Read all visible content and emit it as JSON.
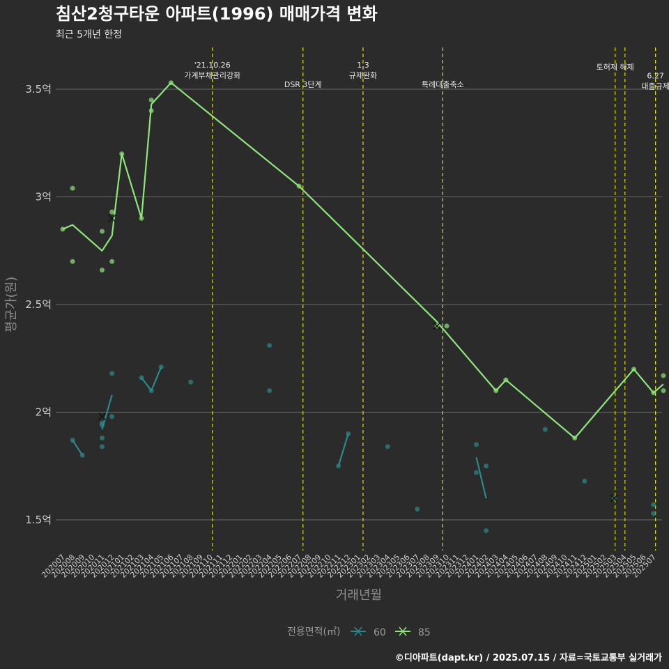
{
  "chart_data": {
    "type": "line",
    "title": "침산2청구타운 아파트(1996) 매매가격 변화",
    "subtitle": "최근 5개년 한정",
    "xlabel": "거래년월",
    "ylabel": "평균가(원)",
    "caption": "©디아파트(dapt.kr) / 2025.07.15 / 자료=국토교통부 실거래가",
    "legend": {
      "title": "전용면적(㎡)",
      "position": "bottom"
    },
    "ylim": [
      1.35,
      3.7
    ],
    "y_ticks": [
      1.5,
      2,
      2.5,
      3,
      3.5
    ],
    "y_tick_labels": [
      "1.5억",
      "2억",
      "2.5억",
      "3억",
      "3.5억"
    ],
    "grid": true,
    "x_categories": [
      "202007",
      "202008",
      "202009",
      "202010",
      "202011",
      "202012",
      "202101",
      "202102",
      "202103",
      "202104",
      "202105",
      "202106",
      "202107",
      "202108",
      "202109",
      "202110",
      "202111",
      "202112",
      "202201",
      "202202",
      "202203",
      "202204",
      "202205",
      "202206",
      "202207",
      "202208",
      "202209",
      "202210",
      "202211",
      "202212",
      "202301",
      "202302",
      "202303",
      "202304",
      "202305",
      "202306",
      "202307",
      "202308",
      "202309",
      "202310",
      "202311",
      "202312",
      "202401",
      "202402",
      "202403",
      "202404",
      "202405",
      "202406",
      "202407",
      "202408",
      "202409",
      "202410",
      "202411",
      "202412",
      "202501",
      "202502",
      "202503",
      "202504",
      "202505",
      "202506",
      "202507"
    ],
    "events": [
      {
        "x": 15.2,
        "lines": [
          "'21.10.26",
          "가계부채관리강화"
        ],
        "label_y": 3.6
      },
      {
        "x": 24.4,
        "lines": [
          "DSR 3단계"
        ],
        "label_y": 3.51
      },
      {
        "x": 30.5,
        "lines": [
          "1.3",
          "규제완화"
        ],
        "label_y": 3.6
      },
      {
        "x": 38.6,
        "lines": [
          "특례대출축소"
        ],
        "label_y": 3.51
      },
      {
        "x": 56.1,
        "lines": [
          "토허제 해제"
        ],
        "label_y": 3.59
      },
      {
        "x": 57.1,
        "lines": [],
        "label_y": 3.59
      },
      {
        "x": 60.2,
        "lines": [
          "6.27",
          "대출규제"
        ],
        "label_y": 3.55
      }
    ],
    "series": [
      {
        "name": "60",
        "color": "#2a8a8a",
        "line": [
          [
            1,
            1.87
          ],
          [
            2,
            1.8
          ],
          [
            null,
            null
          ],
          [
            4,
            1.92
          ],
          [
            5,
            2.08
          ],
          [
            null,
            null
          ],
          [
            8,
            2.16
          ],
          [
            9,
            2.1
          ],
          [
            10,
            2.21
          ],
          [
            null,
            null
          ],
          [
            28,
            1.75
          ],
          [
            29,
            1.9
          ],
          [
            null,
            null
          ],
          [
            42,
            1.79
          ],
          [
            43,
            1.6
          ]
        ],
        "points": [
          [
            1,
            1.87
          ],
          [
            2,
            1.8
          ],
          [
            4,
            1.95
          ],
          [
            4,
            1.94
          ],
          [
            4,
            1.88
          ],
          [
            4,
            1.84
          ],
          [
            5,
            2.18
          ],
          [
            5,
            1.98
          ],
          [
            8,
            2.16
          ],
          [
            9,
            2.1
          ],
          [
            10,
            2.21
          ],
          [
            13,
            2.14
          ],
          [
            21,
            2.31
          ],
          [
            21,
            2.1
          ],
          [
            28,
            1.75
          ],
          [
            29,
            1.9
          ],
          [
            33,
            1.84
          ],
          [
            36,
            1.55
          ],
          [
            42,
            1.85
          ],
          [
            42,
            1.72
          ],
          [
            43,
            1.75
          ],
          [
            43,
            1.45
          ],
          [
            49,
            1.92
          ],
          [
            53,
            1.68
          ],
          [
            56,
            1.6
          ],
          [
            60,
            1.57
          ],
          [
            60,
            1.53
          ]
        ],
        "markers_x": [
          [
            4,
            1.98
          ],
          [
            56,
            1.6
          ]
        ]
      },
      {
        "name": "85",
        "color": "#8ee67a",
        "line": [
          [
            0,
            2.85
          ],
          [
            1,
            2.87
          ],
          [
            4,
            2.75
          ],
          [
            5,
            2.82
          ],
          [
            6,
            3.2
          ],
          [
            8,
            2.9
          ],
          [
            9,
            3.43
          ],
          [
            11,
            3.53
          ],
          [
            24,
            3.05
          ],
          [
            38,
            2.42
          ],
          [
            44,
            2.1
          ],
          [
            45,
            2.15
          ],
          [
            52,
            1.88
          ],
          [
            58,
            2.2
          ],
          [
            60,
            2.09
          ],
          [
            61,
            2.13
          ]
        ],
        "points": [
          [
            0,
            2.85
          ],
          [
            1,
            3.04
          ],
          [
            1,
            2.7
          ],
          [
            4,
            2.84
          ],
          [
            4,
            2.66
          ],
          [
            5,
            2.93
          ],
          [
            5,
            2.7
          ],
          [
            6,
            3.2
          ],
          [
            8,
            2.9
          ],
          [
            9,
            3.45
          ],
          [
            9,
            3.4
          ],
          [
            11,
            3.53
          ],
          [
            24,
            3.05
          ],
          [
            38,
            2.4
          ],
          [
            39,
            2.4
          ],
          [
            44,
            2.1
          ],
          [
            45,
            2.15
          ],
          [
            52,
            1.88
          ],
          [
            58,
            2.2
          ],
          [
            60,
            2.09
          ],
          [
            61,
            2.17
          ],
          [
            61,
            2.1
          ]
        ],
        "markers_x": [
          [
            5,
            2.9
          ],
          [
            38,
            2.4
          ]
        ]
      }
    ]
  }
}
